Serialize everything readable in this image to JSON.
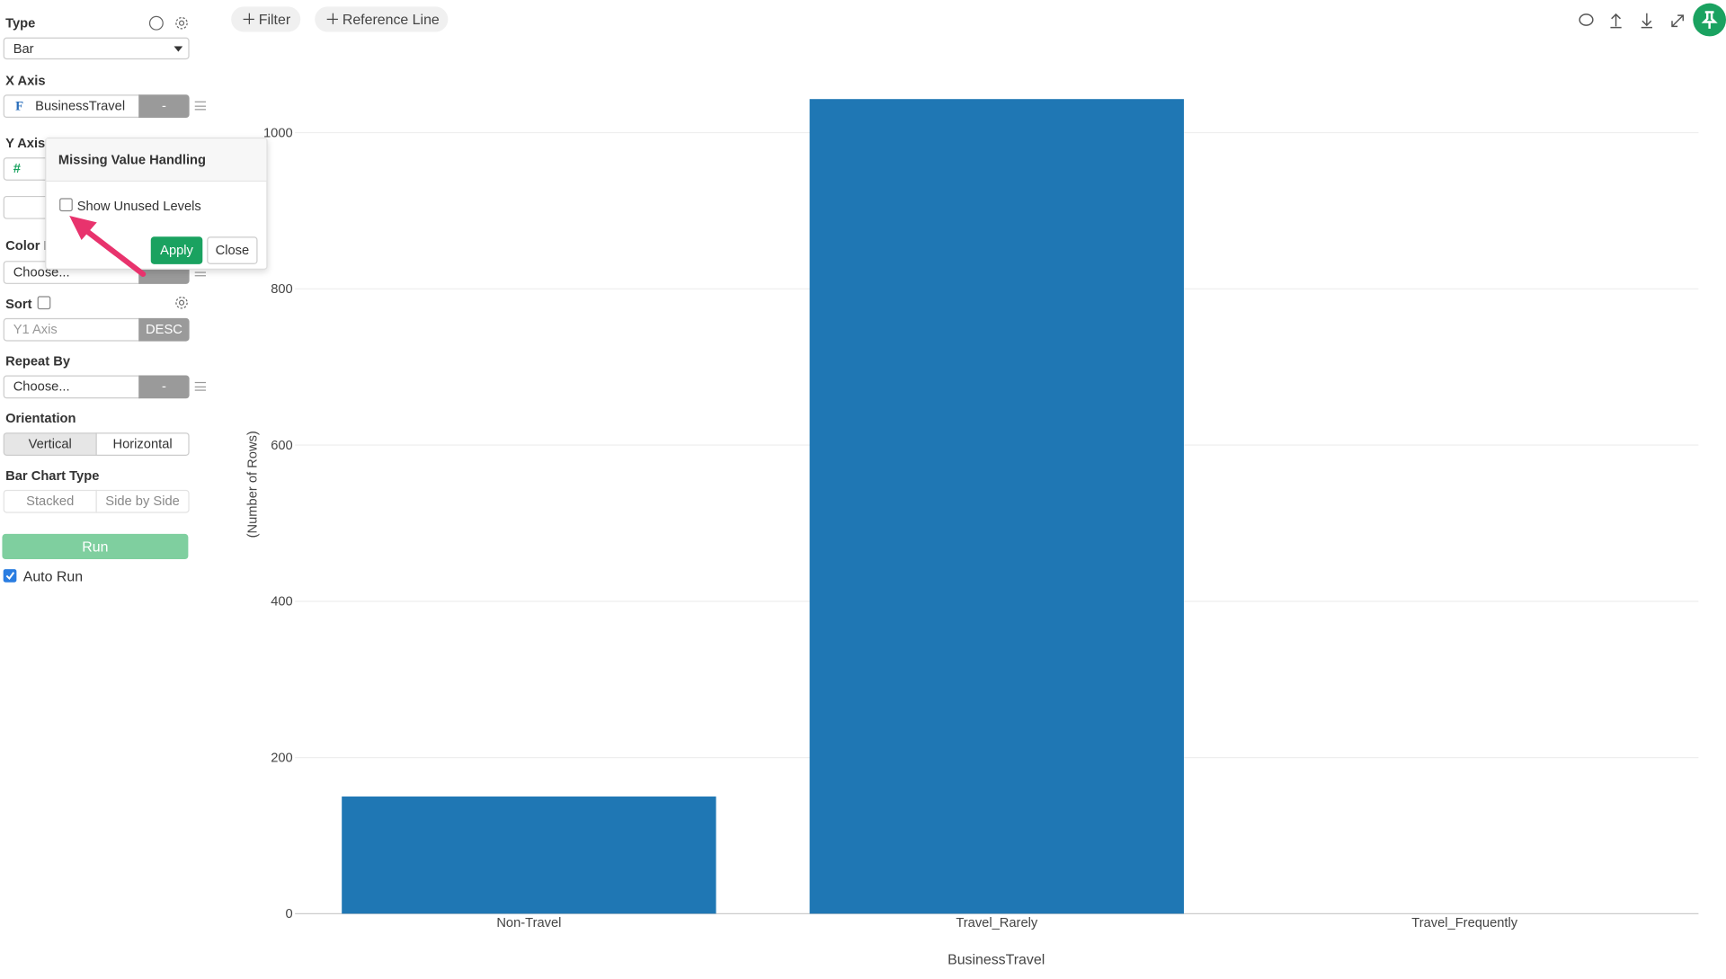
{
  "toolbar": {
    "filter": "Filter",
    "reference_line": "Reference Line"
  },
  "sidebar": {
    "type_label": "Type",
    "type_value": "Bar",
    "x_axis_label": "X Axis",
    "x_axis_value": "BusinessTravel",
    "x_axis_button": "-",
    "y_axis_label": "Y Axis",
    "color_label": "Color By",
    "color_value": "Choose...",
    "sort_label": "Sort",
    "sort_value": "Y1 Axis",
    "sort_button": "DESC",
    "repeat_label": "Repeat By",
    "repeat_value": "Choose...",
    "repeat_button": "-",
    "orientation_label": "Orientation",
    "orientation_options": [
      "Vertical",
      "Horizontal"
    ],
    "bar_type_label": "Bar Chart Type",
    "bar_type_options": [
      "Stacked",
      "Side by Side"
    ],
    "run": "Run",
    "auto_run": "Auto Run"
  },
  "popup": {
    "title": "Missing Value Handling",
    "checkbox": "Show Unused Levels",
    "apply": "Apply",
    "close": "Close"
  },
  "chart_data": {
    "type": "bar",
    "categories": [
      "Non-Travel",
      "Travel_Rarely",
      "Travel_Frequently"
    ],
    "values": [
      150,
      1043,
      null
    ],
    "color": "#1f77b4",
    "xlabel": "BusinessTravel",
    "ylabel": "(Number of Rows)",
    "ylim": [
      0,
      1043
    ],
    "yticks": [
      0,
      200,
      400,
      600,
      800,
      1000
    ],
    "grid": true
  }
}
